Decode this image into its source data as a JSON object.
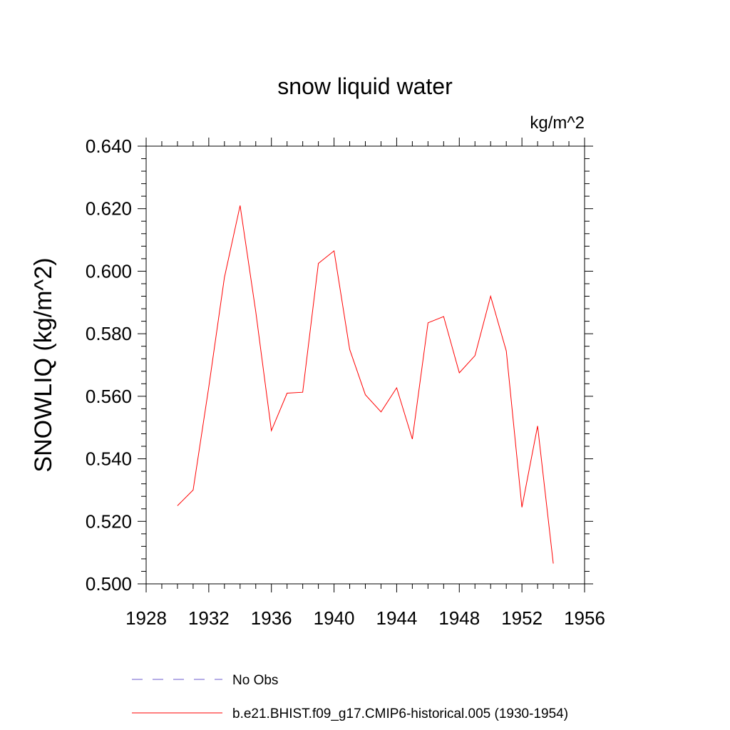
{
  "chart_data": {
    "type": "line",
    "title": "snow liquid water",
    "units": "kg/m^2",
    "xlabel": "",
    "ylabel": "SNOWLIQ  (kg/m^2)",
    "xlim": [
      1928,
      1956
    ],
    "ylim": [
      0.5,
      0.64
    ],
    "xticks": [
      1928,
      1932,
      1936,
      1940,
      1944,
      1948,
      1952,
      1956
    ],
    "xtick_labels": [
      "1928",
      "1932",
      "1936",
      "1940",
      "1944",
      "1948",
      "1952",
      "1956"
    ],
    "yticks": [
      0.5,
      0.52,
      0.54,
      0.56,
      0.58,
      0.6,
      0.62,
      0.64
    ],
    "ytick_labels": [
      "0.500",
      "0.520",
      "0.540",
      "0.560",
      "0.580",
      "0.600",
      "0.620",
      "0.640"
    ],
    "grid": false,
    "legend_placement": "bottom",
    "series": [
      {
        "name": "b.e21.BHIST.f09_g17.CMIP6-historical.005 (1930-1954)",
        "color": "#ff0000",
        "style": "solid",
        "x": [
          1930,
          1931,
          1932,
          1933,
          1934,
          1935,
          1936,
          1937,
          1938,
          1939,
          1940,
          1941,
          1942,
          1943,
          1944,
          1945,
          1946,
          1947,
          1948,
          1949,
          1950,
          1951,
          1952,
          1953,
          1954
        ],
        "y": [
          0.525,
          0.53,
          0.563,
          0.598,
          0.621,
          0.587,
          0.549,
          0.561,
          0.5613,
          0.6025,
          0.6065,
          0.575,
          0.5605,
          0.555,
          0.5627,
          0.5463,
          0.5835,
          0.5855,
          0.5675,
          0.573,
          0.592,
          0.5745,
          0.5245,
          0.5505,
          0.5065
        ]
      }
    ],
    "legend": [
      {
        "label": "No Obs",
        "color": "#6a5acd",
        "style": "dashed"
      },
      {
        "label": "b.e21.BHIST.f09_g17.CMIP6-historical.005 (1930-1954)",
        "color": "#ff0000",
        "style": "solid"
      }
    ]
  }
}
